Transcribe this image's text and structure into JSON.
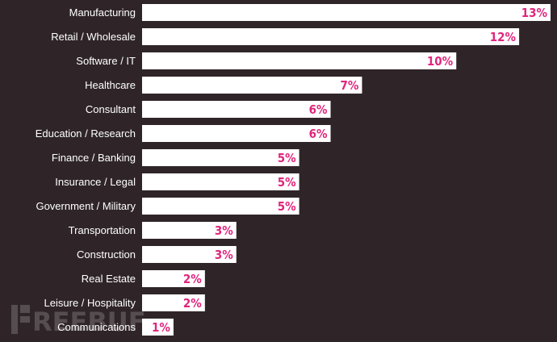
{
  "chart_data": {
    "type": "bar",
    "orientation": "horizontal",
    "title": "",
    "xlabel": "",
    "ylabel": "",
    "categories": [
      "Manufacturing",
      "Retail / Wholesale",
      "Software / IT",
      "Healthcare",
      "Consultant",
      "Education / Research",
      "Finance / Banking",
      "Insurance / Legal",
      "Government / Military",
      "Transportation",
      "Construction",
      "Real Estate",
      "Leisure / Hospitality",
      "Communications"
    ],
    "values": [
      13,
      12,
      10,
      7,
      6,
      6,
      5,
      5,
      5,
      3,
      3,
      2,
      2,
      1
    ],
    "value_labels": [
      "13%",
      "12%",
      "10%",
      "7%",
      "6%",
      "6%",
      "5%",
      "5%",
      "5%",
      "3%",
      "3%",
      "2%",
      "2%",
      "1%"
    ],
    "unit": "%",
    "xlim": [
      0,
      13
    ],
    "grid": false,
    "legend": "none"
  },
  "colors": {
    "background": "#2f2529",
    "bar": "#ffffff",
    "value_label": "#e0267d",
    "category_label": "#ffffff"
  },
  "watermark": {
    "text": "REEBUF"
  }
}
